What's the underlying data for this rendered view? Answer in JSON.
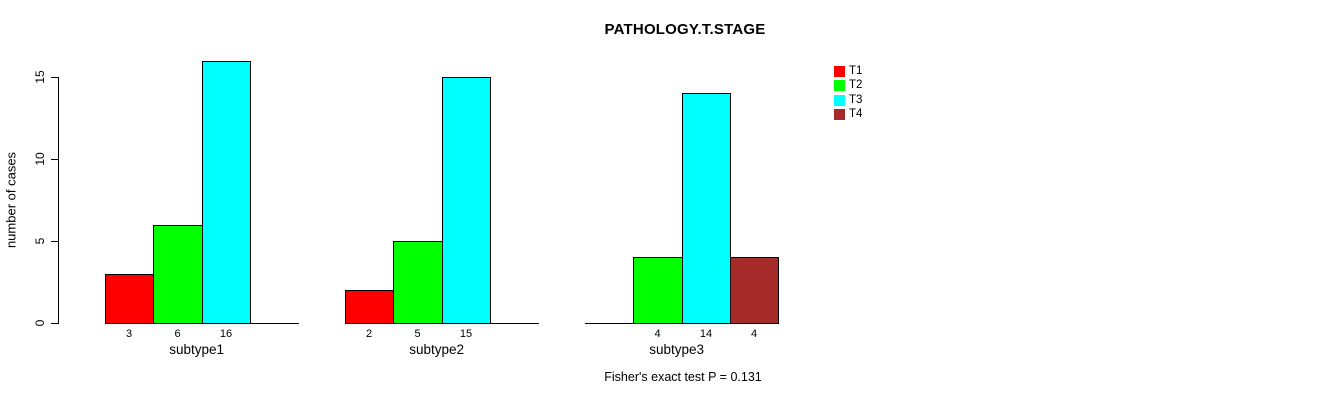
{
  "title": "PATHOLOGY.T.STAGE",
  "y_axis": {
    "label": "number of cases",
    "ticks": [
      0,
      5,
      10,
      15
    ]
  },
  "footnote": "Fisher's exact test P = 0.131",
  "chart_data": {
    "type": "bar",
    "title": "PATHOLOGY.T.STAGE",
    "categories": [
      "subtype1",
      "subtype2",
      "subtype3"
    ],
    "series": [
      {
        "name": "T1",
        "color": "#FF0000",
        "values": [
          3,
          2,
          0
        ]
      },
      {
        "name": "T2",
        "color": "#00FF00",
        "values": [
          6,
          5,
          4
        ]
      },
      {
        "name": "T3",
        "color": "#00FFFF",
        "values": [
          16,
          15,
          14
        ]
      },
      {
        "name": "T4",
        "color": "#A52A2A",
        "values": [
          0,
          0,
          4
        ]
      }
    ],
    "ylabel": "number of cases",
    "xlabel": "",
    "ylim": [
      0,
      16
    ],
    "yticks": [
      0,
      5,
      10,
      15
    ],
    "bar_value_labels": true,
    "zero_bars_hidden": true,
    "grid": false,
    "legend_position": "top-right",
    "annotation": "Fisher's exact test P = 0.131"
  }
}
